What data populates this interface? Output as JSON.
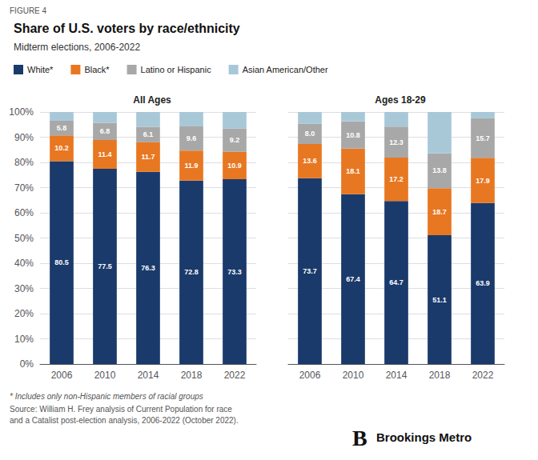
{
  "title": "Share of U.S. voters by race/ethnicity",
  "subtitle": "Midterm elections, 2006-2022",
  "annotations": [
    "FIGURE 4",
    "* Includes only non-Hispanic members of racial groups",
    "Source: William H. Frey analysis of Current Population for race\nand a Catalist post-election analysis, 2006-2022 (October 2022).",
    "B",
    "Brookings Metro"
  ],
  "chart_data": [
    {
      "type": "bar",
      "title": "All Ages",
      "stacked": true,
      "grid": true,
      "categories": [
        "2006",
        "2010",
        "2014",
        "2018",
        "2022"
      ],
      "ylim": [
        0,
        100
      ],
      "yticks": [
        {
          "value": 0,
          "label": "0%"
        },
        {
          "value": 10,
          "label": "10%"
        },
        {
          "value": 20,
          "label": "20%"
        },
        {
          "value": 30,
          "label": "30%"
        },
        {
          "value": 40,
          "label": "40%"
        },
        {
          "value": 50,
          "label": "50%"
        },
        {
          "value": 60,
          "label": "60%"
        },
        {
          "value": 70,
          "label": "70%"
        },
        {
          "value": 80,
          "label": "80%"
        },
        {
          "value": 90,
          "label": "90%"
        },
        {
          "value": 100,
          "label": "100%"
        }
      ],
      "series": [
        {
          "name": "White*",
          "color": "#1a3a6b",
          "data_labels": true,
          "values": [
            80.5,
            77.5,
            76.3,
            72.8,
            73.3
          ]
        },
        {
          "name": "Black*",
          "color": "#e87722",
          "data_labels": true,
          "values": [
            10.2,
            11.4,
            11.7,
            11.9,
            10.9
          ]
        },
        {
          "name": "Latino or Hispanic",
          "color": "#a8a8a8",
          "data_labels": true,
          "values": [
            5.8,
            6.8,
            6.1,
            9.6,
            9.2
          ]
        },
        {
          "name": "Asian American/Other",
          "color": "#a8c8d8",
          "data_labels": false,
          "values": [
            3.5,
            4.3,
            5.9,
            5.7,
            6.6
          ]
        }
      ]
    },
    {
      "type": "bar",
      "title": "Ages 18-29",
      "stacked": true,
      "grid": true,
      "tick_labels": "x",
      "categories": [
        "2006",
        "2010",
        "2014",
        "2018",
        "2022"
      ],
      "ylim": [
        0,
        100
      ],
      "yticks": [
        0,
        10,
        20,
        30,
        40,
        50,
        60,
        70,
        80,
        90,
        100
      ],
      "series": [
        {
          "name": "White*",
          "color": "#1a3a6b",
          "data_labels": true,
          "values": [
            73.7,
            67.4,
            64.7,
            51.1,
            63.9
          ]
        },
        {
          "name": "Black*",
          "color": "#e87722",
          "data_labels": true,
          "values": [
            13.6,
            18.1,
            17.2,
            18.7,
            17.9
          ]
        },
        {
          "name": "Latino or Hispanic",
          "color": "#a8a8a8",
          "data_labels": true,
          "values": [
            8.0,
            10.8,
            12.3,
            13.8,
            15.7
          ],
          "value_labels": [
            "8.0",
            "10.8",
            "12.3",
            "13.8",
            "15.7"
          ]
        },
        {
          "name": "Asian American/Other",
          "color": "#a8c8d8",
          "data_labels": false,
          "values": [
            4.7,
            3.7,
            5.8,
            16.4,
            2.5
          ]
        }
      ]
    }
  ]
}
